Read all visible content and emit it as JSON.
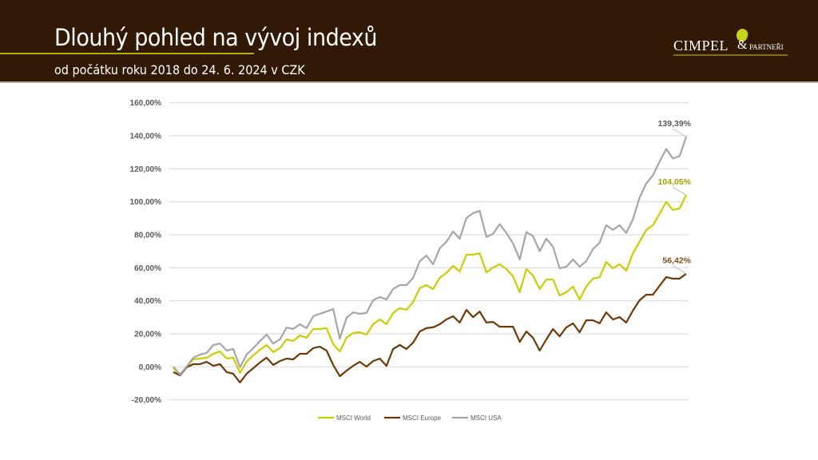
{
  "header": {
    "title": "Dlouhý pohled na vývoj indexů",
    "subtitle": "od počátku roku 2018 do 24. 6. 2024 v CZK",
    "logo_text": "CIMPEL & PARTNEŘI",
    "logo_main": "CIMPEL",
    "logo_amp": "&",
    "logo_sub": "PARTNEŘI"
  },
  "chart_data": {
    "type": "line",
    "title": "",
    "xlabel": "",
    "ylabel": "",
    "ylim": [
      -20,
      160
    ],
    "yticks": [
      "-20,00%",
      "0,00%",
      "20,00%",
      "40,00%",
      "60,00%",
      "80,00%",
      "100,00%",
      "120,00%",
      "140,00%",
      "160,00%"
    ],
    "ytick_values": [
      -20,
      0,
      20,
      40,
      60,
      80,
      100,
      120,
      140,
      160
    ],
    "grid": true,
    "legend_position": "bottom",
    "series": [
      {
        "name": "MSCI World",
        "color": "#c8cc00",
        "label_color": "#a5a000",
        "end_label": "104,05%",
        "values": [
          -0.8,
          -4.7,
          0.1,
          4.5,
          5.0,
          5.5,
          7.9,
          9.3,
          5.0,
          5.5,
          -3.7,
          3.1,
          7.0,
          10.3,
          13.2,
          8.9,
          11.3,
          16.6,
          15.6,
          19.0,
          17.6,
          22.9,
          22.9,
          23.4,
          13.7,
          9.3,
          17.6,
          20.5,
          20.9,
          19.5,
          25.8,
          28.7,
          25.8,
          32.6,
          35.5,
          34.5,
          39.3,
          47.6,
          49.5,
          47.1,
          53.9,
          56.8,
          61.1,
          57.7,
          67.9,
          67.9,
          68.8,
          57.2,
          60.1,
          62.1,
          59.2,
          54.8,
          45.2,
          59.2,
          55.3,
          47.1,
          52.9,
          52.9,
          43.2,
          45.2,
          48.6,
          40.8,
          48.6,
          53.4,
          54.3,
          63.5,
          59.7,
          62.1,
          58.2,
          68.8,
          75.7,
          82.9,
          85.8,
          92.6,
          99.9,
          95.0,
          96.0,
          104.05
        ]
      },
      {
        "name": "MSCI Europe",
        "color": "#6b3a0b",
        "label_color": "#7f4f1f",
        "end_label": "56,42%",
        "values": [
          -3.2,
          -5.2,
          -0.3,
          1.6,
          1.6,
          3.0,
          0.6,
          1.6,
          -3.2,
          -4.2,
          -9.5,
          -4.2,
          -0.8,
          2.6,
          5.5,
          1.1,
          3.5,
          5.0,
          4.5,
          7.9,
          7.9,
          11.3,
          12.2,
          9.8,
          1.1,
          -5.7,
          -2.3,
          0.6,
          3.0,
          0.1,
          3.5,
          5.0,
          0.6,
          10.8,
          13.2,
          10.8,
          14.7,
          21.4,
          23.4,
          23.9,
          25.8,
          28.7,
          30.6,
          26.8,
          34.5,
          30.1,
          33.5,
          26.8,
          27.2,
          24.3,
          24.3,
          24.3,
          15.1,
          21.4,
          17.6,
          9.8,
          16.6,
          22.9,
          18.5,
          23.9,
          26.3,
          20.9,
          28.2,
          28.2,
          26.3,
          33.0,
          28.7,
          30.1,
          26.8,
          34.0,
          40.3,
          43.7,
          43.7,
          49.0,
          54.4,
          53.4,
          53.4,
          56.42
        ]
      },
      {
        "name": "MSCI USA",
        "color": "#a6a6a6",
        "label_color": "#595959",
        "end_label": "139,39%",
        "values": [
          0.1,
          -4.7,
          0.1,
          5.5,
          7.4,
          8.4,
          13.2,
          14.1,
          9.8,
          10.8,
          -0.3,
          7.4,
          11.3,
          15.6,
          19.5,
          14.1,
          16.6,
          23.8,
          22.9,
          25.8,
          23.4,
          30.6,
          32.1,
          33.5,
          35.0,
          17.1,
          29.7,
          33.0,
          32.1,
          32.6,
          40.3,
          42.3,
          40.8,
          47.1,
          49.5,
          49.5,
          53.9,
          64.0,
          67.4,
          62.1,
          71.8,
          75.7,
          82.0,
          77.6,
          90.2,
          93.1,
          94.5,
          78.6,
          80.6,
          86.4,
          81.1,
          74.8,
          65.0,
          81.6,
          79.2,
          70.0,
          77.6,
          72.8,
          59.7,
          60.6,
          65.0,
          60.6,
          64.0,
          71.3,
          75.2,
          85.8,
          82.9,
          85.8,
          81.1,
          89.4,
          102.4,
          111.1,
          116.0,
          124.2,
          132.0,
          126.2,
          127.6,
          139.39
        ]
      }
    ]
  }
}
